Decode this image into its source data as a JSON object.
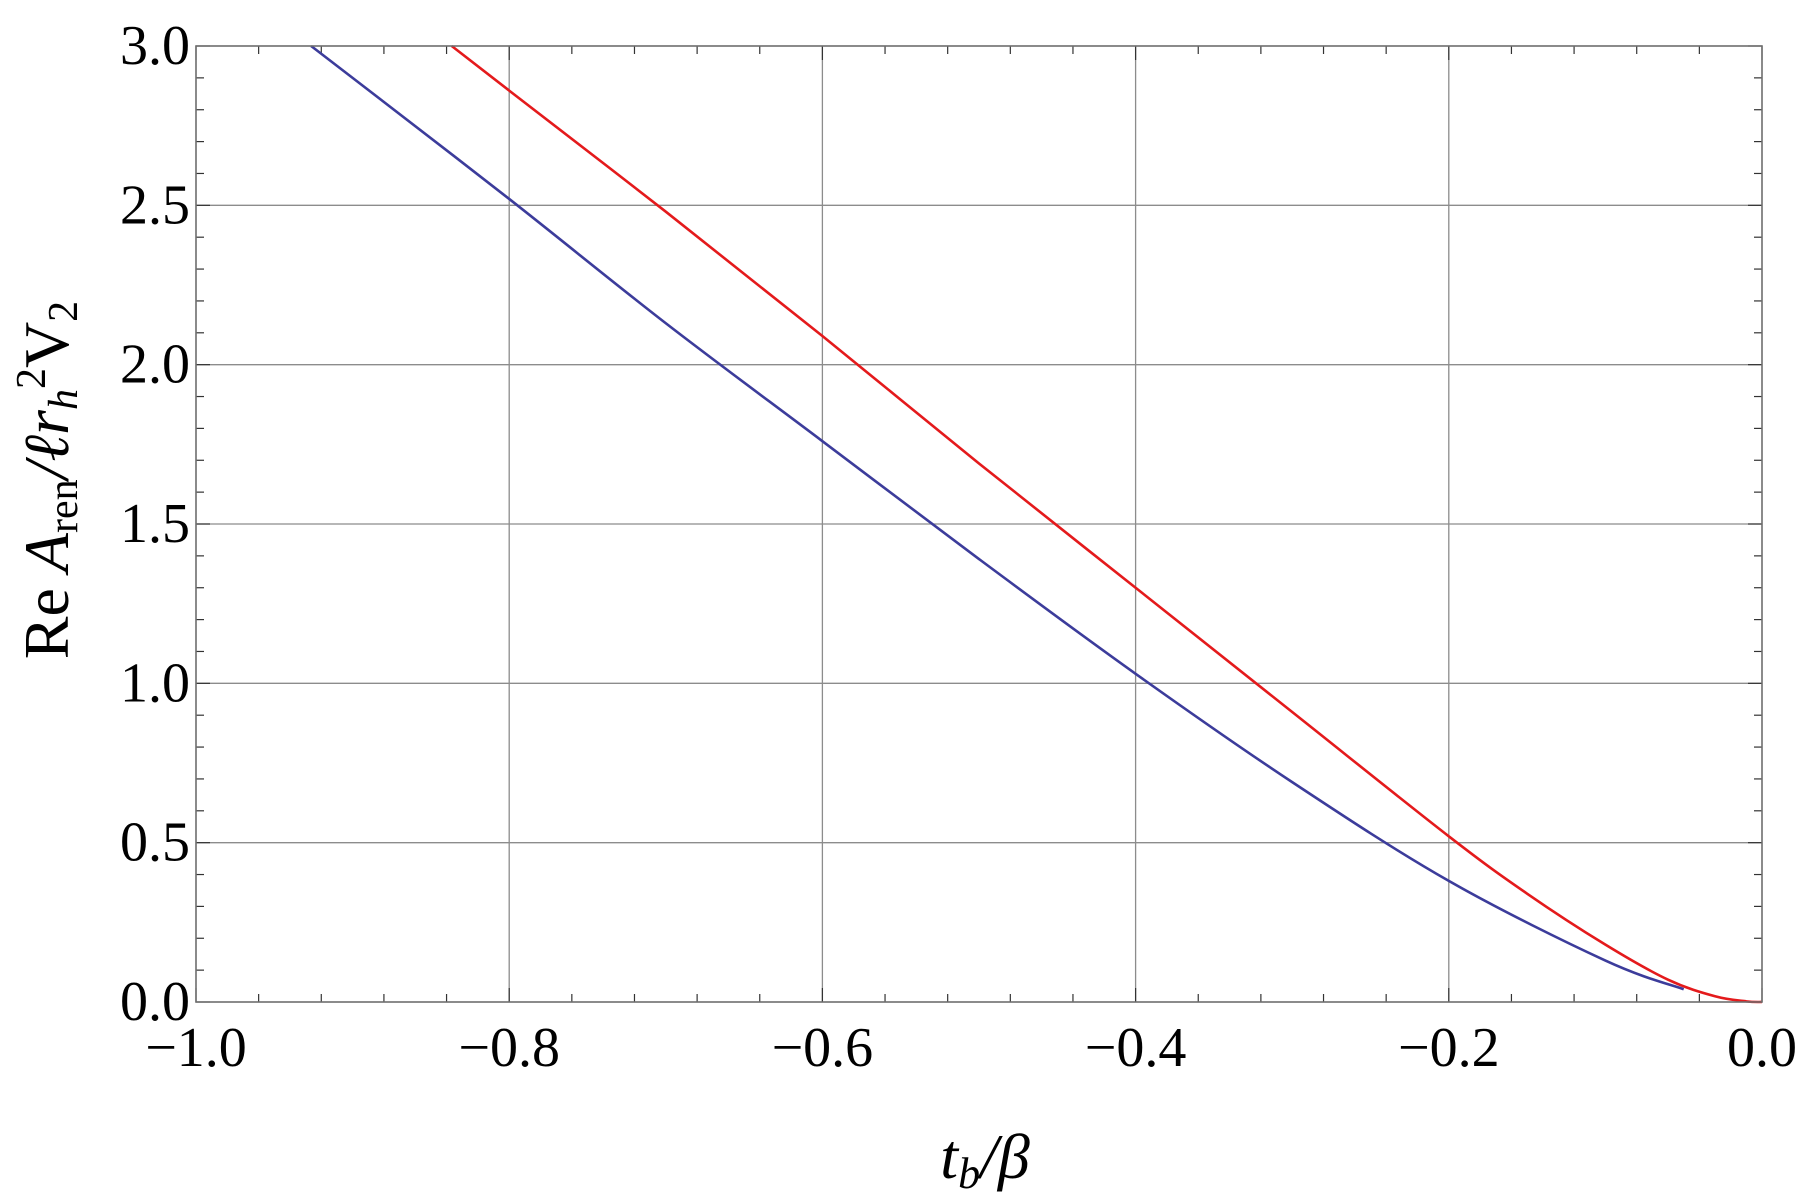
{
  "chart_data": {
    "type": "line",
    "title": "",
    "xlabel": {
      "main": "t",
      "sub": "b",
      "rest": "/β"
    },
    "ylabel": {
      "re": "Re ",
      "a": "A",
      "a_sub": "ren",
      "mid": "/ℓr",
      "h_sub": "h",
      "sup": "2",
      "v": "V",
      "v_sub": "2"
    },
    "xlim": [
      -1.0,
      0.0
    ],
    "ylim": [
      0.0,
      3.0
    ],
    "xticks": [
      -1.0,
      -0.8,
      -0.6,
      -0.4,
      -0.2,
      0.0
    ],
    "yticks": [
      0.0,
      0.5,
      1.0,
      1.5,
      2.0,
      2.5,
      3.0
    ],
    "xtick_labels": [
      "−1.0",
      "−0.8",
      "−0.6",
      "−0.4",
      "−0.2",
      "0.0"
    ],
    "ytick_labels": [
      "0.0",
      "0.5",
      "1.0",
      "1.5",
      "2.0",
      "2.5",
      "3.0"
    ],
    "grid": true,
    "series": [
      {
        "color": "#e41a1c",
        "x": [
          -0.8367,
          -0.8,
          -0.7,
          -0.6,
          -0.5,
          -0.4,
          -0.3,
          -0.2,
          -0.15,
          -0.1,
          -0.06,
          -0.03,
          -0.01,
          0.0
        ],
        "y": [
          3.0,
          2.86,
          2.48,
          2.09,
          1.69,
          1.3,
          0.91,
          0.52,
          0.34,
          0.18,
          0.07,
          0.018,
          0.002,
          0.0
        ]
      },
      {
        "color": "#3c3c9b",
        "x": [
          -0.9265,
          -0.9,
          -0.8,
          -0.7,
          -0.6,
          -0.5,
          -0.4,
          -0.3,
          -0.2,
          -0.1,
          -0.05
        ],
        "y": [
          3.0,
          2.9,
          2.52,
          2.13,
          1.76,
          1.39,
          1.03,
          0.69,
          0.38,
          0.13,
          0.04
        ]
      }
    ]
  }
}
